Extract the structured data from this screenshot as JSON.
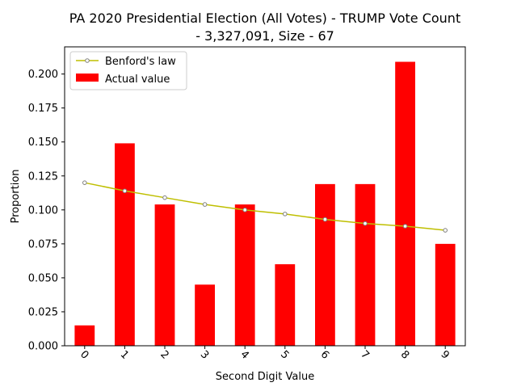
{
  "chart_data": {
    "type": "bar",
    "title_line1": "PA 2020 Presidential Election (All Votes) - TRUMP Vote Count",
    "title_line2": "- 3,327,091, Size - 67",
    "xlabel": "Second Digit Value",
    "ylabel": "Proportion",
    "categories": [
      "0",
      "1",
      "2",
      "3",
      "4",
      "5",
      "6",
      "7",
      "8",
      "9"
    ],
    "ylim": [
      0,
      0.22
    ],
    "yticks": [
      "0.000",
      "0.025",
      "0.050",
      "0.075",
      "0.100",
      "0.125",
      "0.150",
      "0.175",
      "0.200"
    ],
    "grid": false,
    "legend_position": "top-left",
    "series": [
      {
        "name": "Actual value",
        "kind": "bar",
        "color": "#ff0000",
        "values": [
          0.015,
          0.149,
          0.104,
          0.045,
          0.104,
          0.06,
          0.119,
          0.119,
          0.209,
          0.075
        ]
      },
      {
        "name": "Benford's law",
        "kind": "line",
        "color": "#bfbf00",
        "marker_color": "#808080",
        "values": [
          0.12,
          0.114,
          0.109,
          0.104,
          0.1,
          0.097,
          0.093,
          0.09,
          0.088,
          0.085
        ]
      }
    ]
  }
}
